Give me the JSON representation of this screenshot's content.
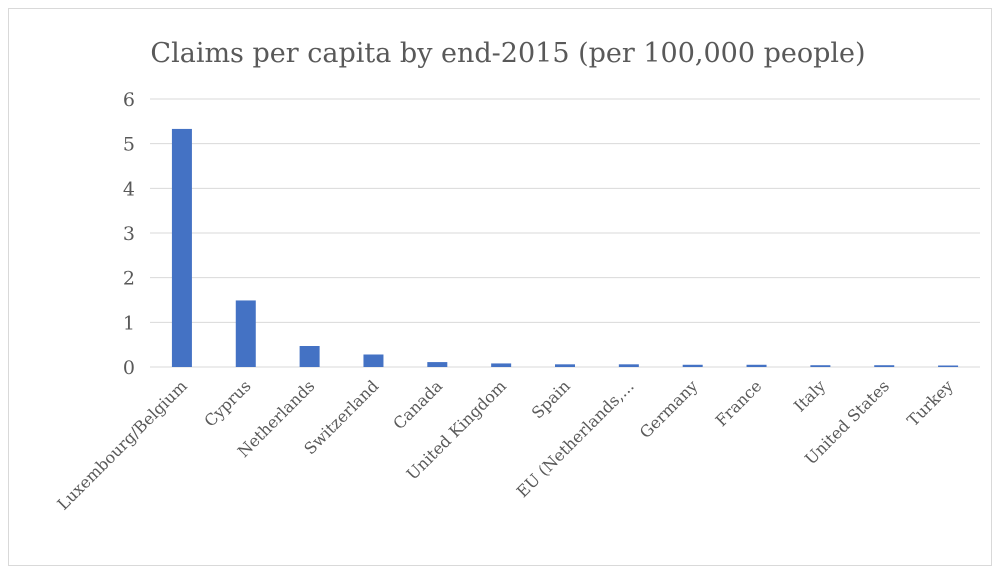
{
  "chart_data": {
    "type": "bar",
    "title": "Claims per capita by end-2015 (per 100,000 people)",
    "xlabel": "",
    "ylabel": "",
    "ylim": [
      0,
      6
    ],
    "yticks": [
      0,
      1,
      2,
      3,
      4,
      5,
      6
    ],
    "grid": true,
    "legend": "none",
    "color": "#4472C4",
    "categories": [
      "Luxembourg/Belgium",
      "Cyprus",
      "Netherlands",
      "Switzerland",
      "Canada",
      "United Kingdom",
      "Spain",
      "EU (Netherlands,...",
      "Germany",
      "France",
      "Italy",
      "United States",
      "Turkey"
    ],
    "values": [
      5.33,
      1.49,
      0.47,
      0.28,
      0.11,
      0.08,
      0.06,
      0.06,
      0.05,
      0.05,
      0.04,
      0.04,
      0.01
    ]
  }
}
